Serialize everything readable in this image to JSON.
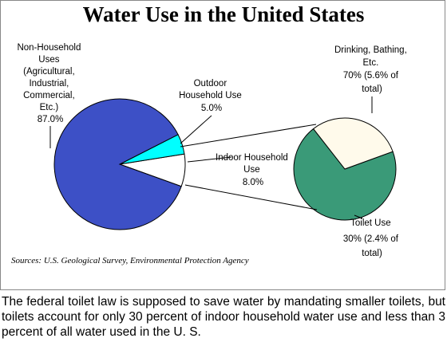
{
  "chart_data": {
    "type": "pie",
    "title": "Water Use in the United States",
    "main_pie": {
      "slices": [
        {
          "name": "Non-Household Uses (Agricultural, Industrial, Commercial, Etc.)",
          "label_lines": [
            "Non-Household",
            "Uses",
            "(Agricultural,",
            "Industrial,",
            "Commercial,",
            "Etc.)",
            "87.0%"
          ],
          "value": 87.0,
          "color": "#3d50c6"
        },
        {
          "name": "Outdoor Household Use",
          "label_lines": [
            "Outdoor",
            "Household Use",
            "5.0%"
          ],
          "value": 5.0,
          "color": "#00ffff"
        },
        {
          "name": "Indoor Household Use",
          "label_lines": [
            "Indoor Household",
            "Use",
            "8.0%"
          ],
          "value": 8.0,
          "color": "#ffffff"
        }
      ]
    },
    "breakout_pie": {
      "parent": "Indoor Household Use",
      "slices": [
        {
          "name": "Drinking, Bathing, Etc.",
          "label_lines": [
            "Drinking, Bathing,",
            "Etc.",
            "70% (5.6% of",
            "total)"
          ],
          "value": 70,
          "color": "#3a9a78"
        },
        {
          "name": "Toilet Use",
          "label_lines": [
            "Toilet Use",
            "30% (2.4% of",
            "total)"
          ],
          "value": 30,
          "color": "#fffaeb"
        }
      ]
    },
    "source": "Sources:  U.S. Geological Survey, Environmental Protection Agency"
  },
  "caption": "The federal toilet law is supposed to save water by mandating smaller toilets, but toilets account for only 30 percent of indoor household water use and less than 3 percent of all water used in the U. S."
}
